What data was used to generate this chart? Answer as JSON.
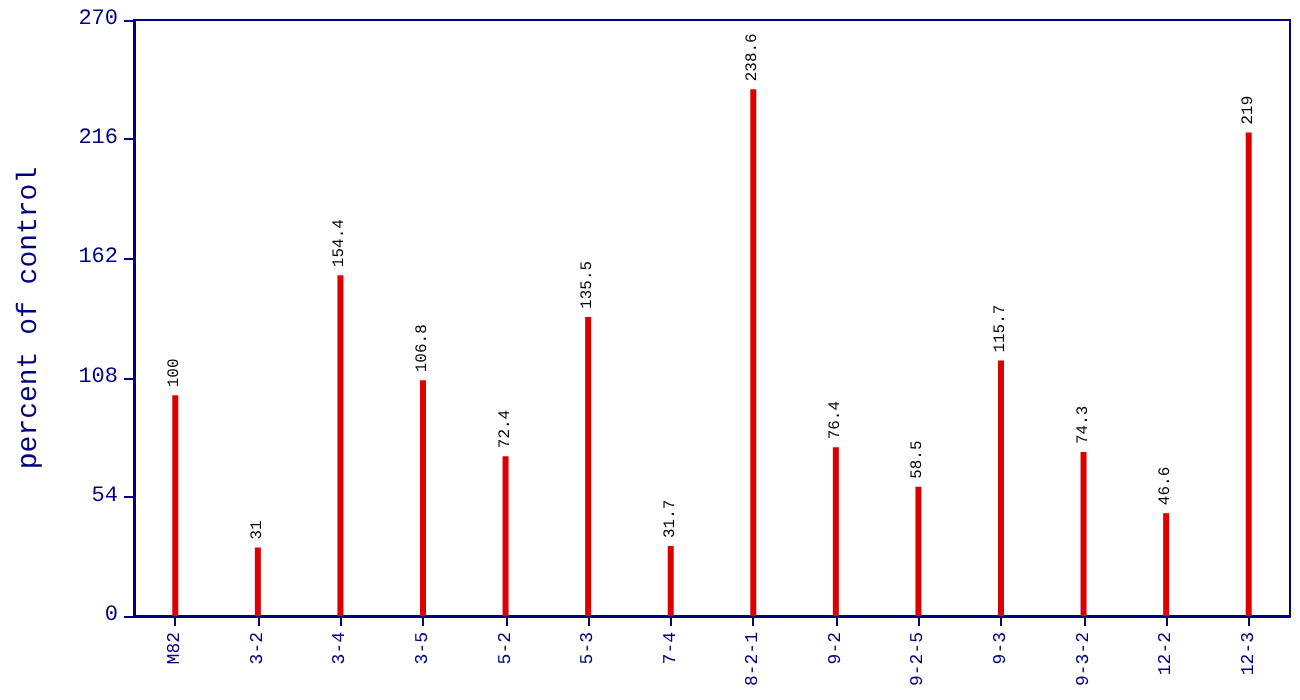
{
  "chart_data": {
    "type": "bar",
    "ylabel": "percent of control",
    "categories": [
      "M82",
      "3-2",
      "3-4",
      "3-5",
      "5-2",
      "5-3",
      "7-4",
      "8-2-1",
      "9-2",
      "9-2-5",
      "9-3",
      "9-3-2",
      "12-2",
      "12-3"
    ],
    "values": [
      100,
      31,
      154.4,
      106.8,
      72.4,
      135.5,
      31.7,
      238.6,
      76.4,
      58.5,
      115.7,
      74.3,
      46.6,
      219
    ],
    "color": "#dd0000",
    "ylim": [
      0,
      270
    ],
    "yticks": [
      0,
      54,
      108,
      162,
      216,
      270
    ],
    "data_labels": true,
    "grid": false
  }
}
